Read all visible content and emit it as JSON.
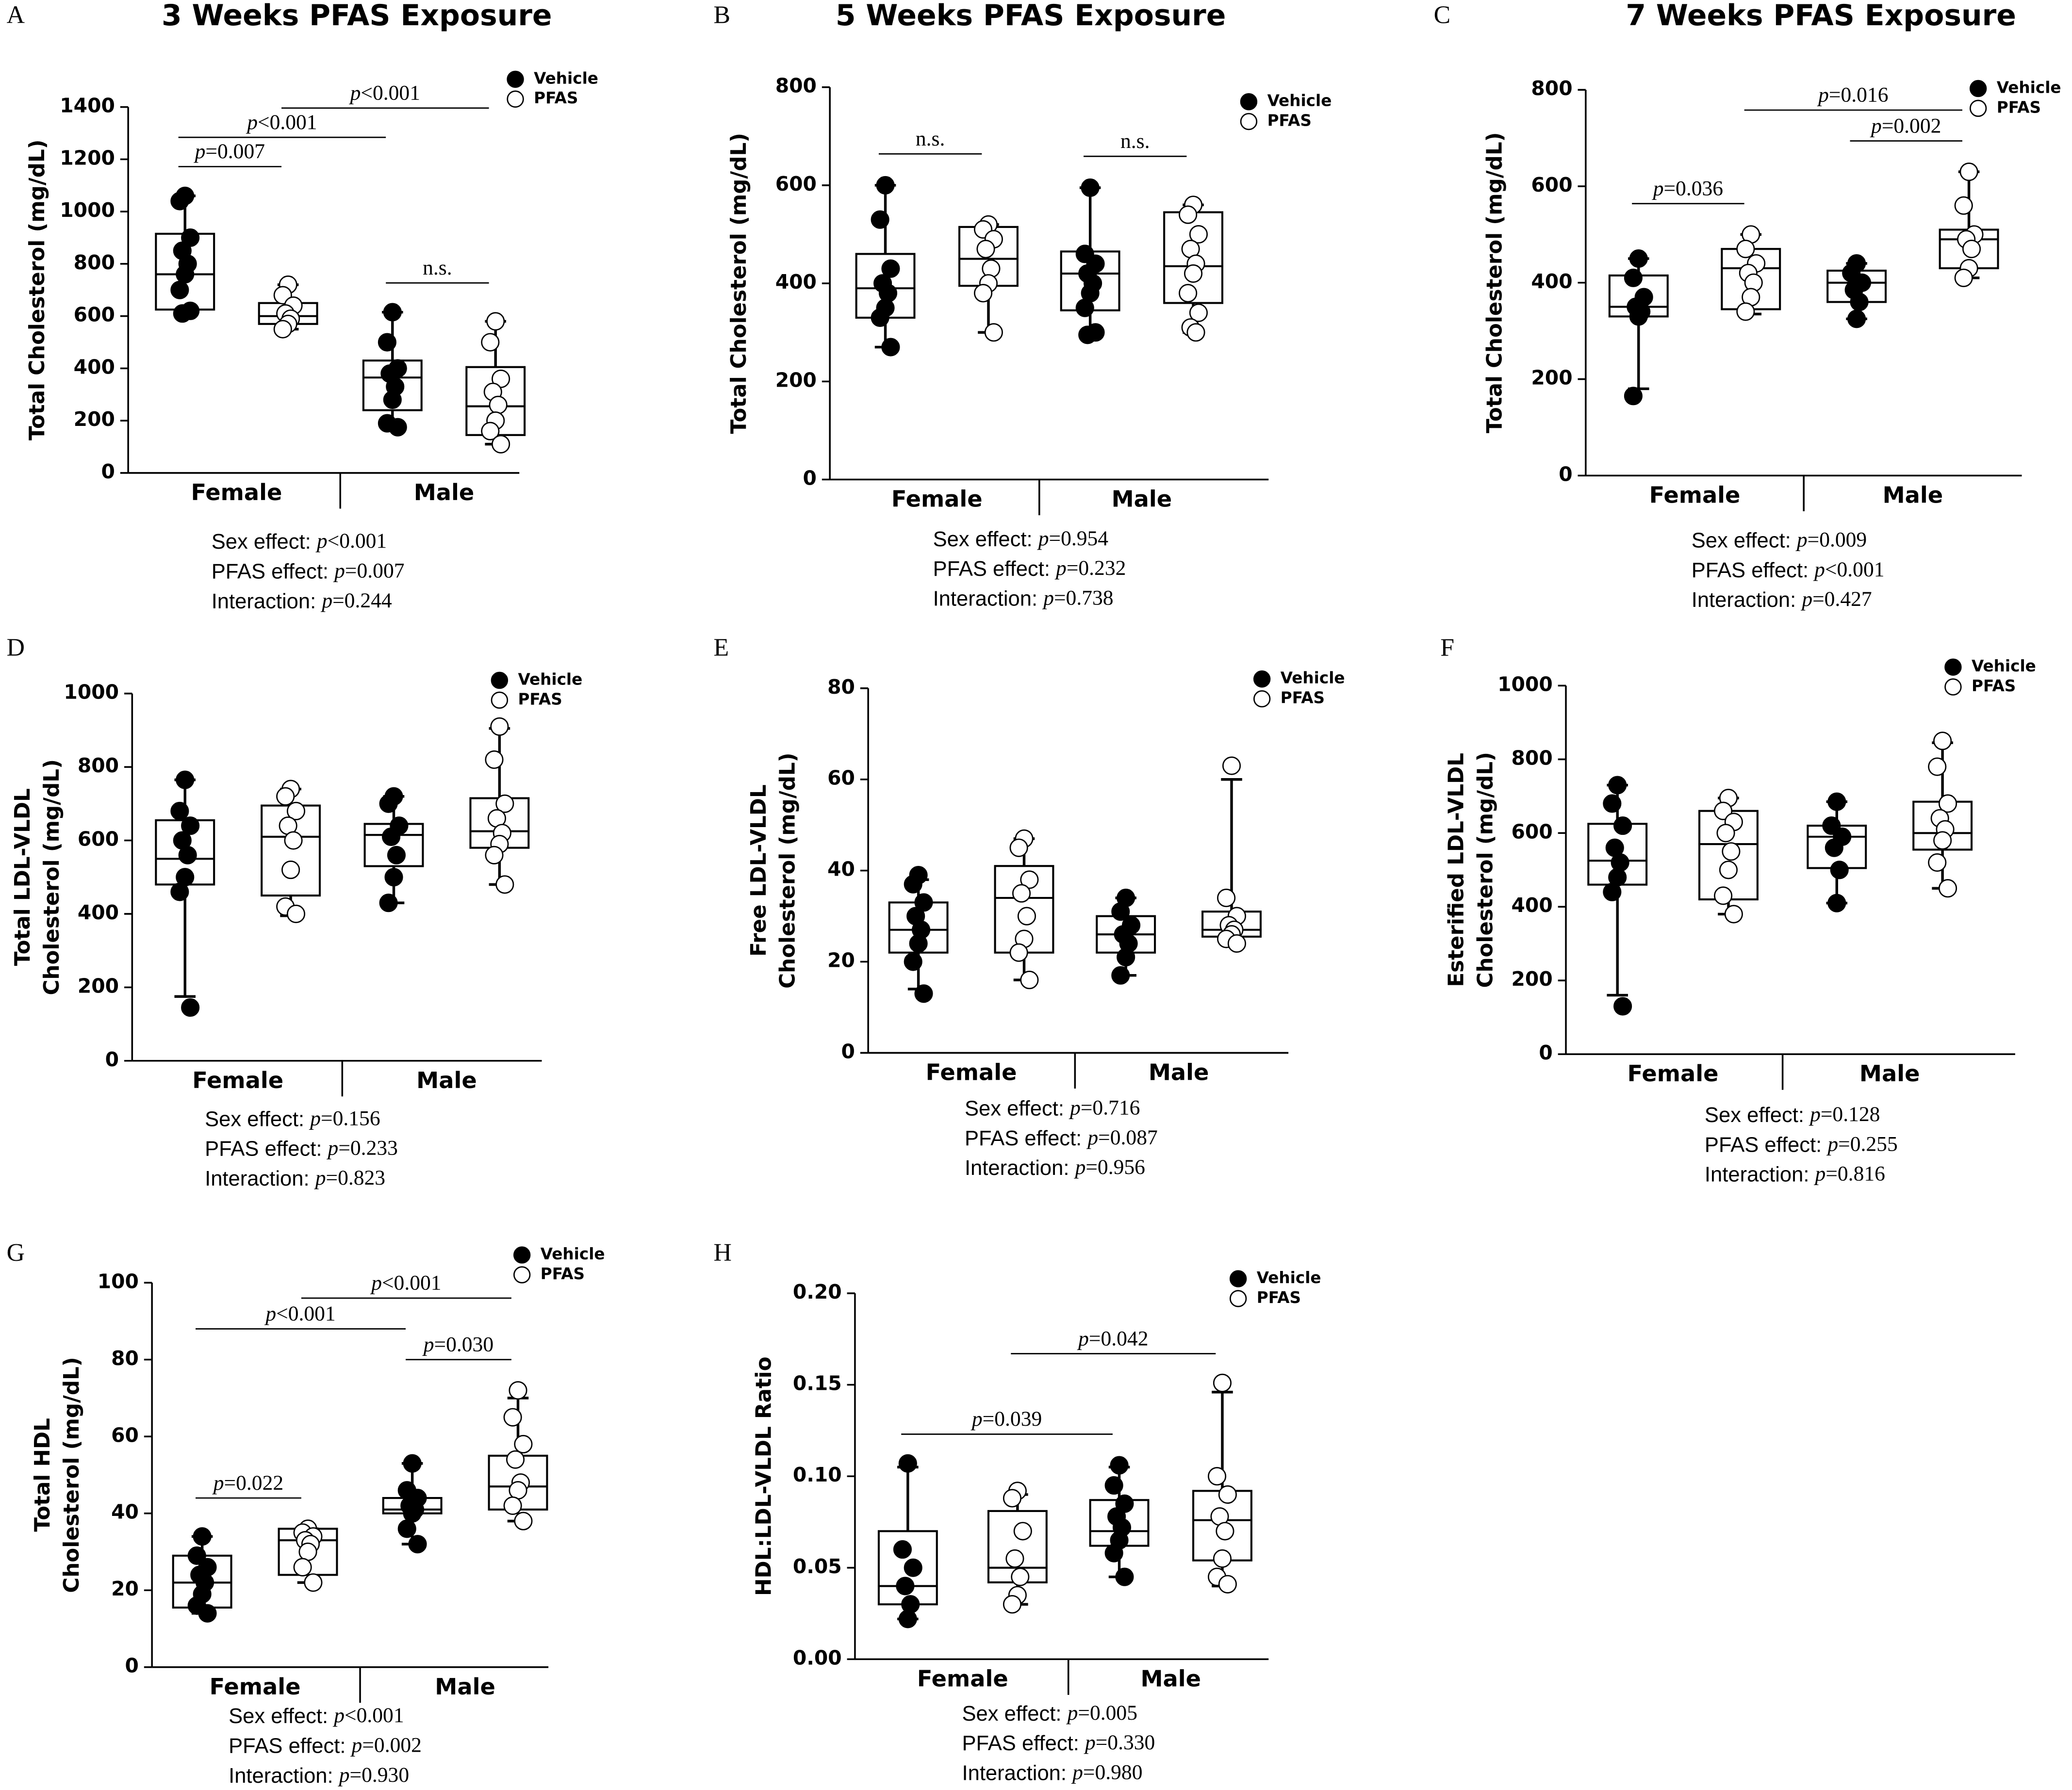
{
  "chart_data": [
    {
      "type": "box",
      "panel_label": "A",
      "title": "3 Weeks PFAS Exposure",
      "ylabel": [
        "Total Cholesterol (mg/dL)"
      ],
      "categories": [
        "Female",
        "Male"
      ],
      "ylim": [
        0,
        1400
      ],
      "yticks": [
        0,
        200,
        400,
        600,
        800,
        1000,
        1200,
        1400
      ],
      "series": [
        {
          "name": "Vehicle",
          "color": "#000000",
          "boxes": [
            {
              "min": 610,
              "q1": 625,
              "median": 760,
              "q3": 915,
              "max": 1060,
              "points": [
                1060,
                1040,
                900,
                850,
                800,
                760,
                700,
                620,
                610
              ]
            },
            {
              "min": 180,
              "q1": 240,
              "median": 365,
              "q3": 430,
              "max": 615,
              "points": [
                615,
                500,
                400,
                380,
                330,
                280,
                190,
                175
              ]
            }
          ]
        },
        {
          "name": "PFAS",
          "color": "#ffffff",
          "boxes": [
            {
              "min": 550,
              "q1": 570,
              "median": 600,
              "q3": 650,
              "max": 720,
              "points": [
                720,
                680,
                640,
                610,
                590,
                570,
                550
              ]
            },
            {
              "min": 110,
              "q1": 145,
              "median": 255,
              "q3": 405,
              "max": 580,
              "points": [
                580,
                500,
                360,
                310,
                260,
                200,
                160,
                110
              ]
            }
          ]
        }
      ],
      "comparisons": [
        {
          "label": "p=0.007",
          "pair": [
            0,
            1
          ]
        },
        {
          "label": "n.s.",
          "pair": [
            2,
            3
          ]
        },
        {
          "label": "p<0.001",
          "pair": [
            0,
            2
          ]
        },
        {
          "label": "p<0.001",
          "pair": [
            1,
            3
          ]
        }
      ],
      "stats": [
        "Sex effect: p<0.001",
        "PFAS effect: p=0.007",
        "Interaction: p=0.244"
      ]
    },
    {
      "type": "box",
      "panel_label": "B",
      "title": "5 Weeks PFAS Exposure",
      "ylabel": [
        "Total Cholesterol (mg/dL)"
      ],
      "categories": [
        "Female",
        "Male"
      ],
      "ylim": [
        0,
        800
      ],
      "yticks": [
        0,
        200,
        400,
        600,
        800
      ],
      "series": [
        {
          "name": "Vehicle",
          "color": "#000000",
          "boxes": [
            {
              "min": 270,
              "q1": 330,
              "median": 390,
              "q3": 460,
              "max": 600,
              "points": [
                600,
                530,
                430,
                400,
                380,
                350,
                330,
                270
              ]
            },
            {
              "min": 295,
              "q1": 345,
              "median": 420,
              "q3": 465,
              "max": 595,
              "points": [
                595,
                460,
                440,
                420,
                400,
                380,
                350,
                300,
                295
              ]
            }
          ]
        },
        {
          "name": "PFAS",
          "color": "#ffffff",
          "boxes": [
            {
              "min": 300,
              "q1": 395,
              "median": 450,
              "q3": 515,
              "max": 520,
              "points": [
                520,
                510,
                490,
                470,
                430,
                400,
                380,
                300
              ]
            },
            {
              "min": 300,
              "q1": 360,
              "median": 435,
              "q3": 545,
              "max": 560,
              "points": [
                560,
                540,
                500,
                470,
                440,
                420,
                380,
                340,
                310,
                300
              ]
            }
          ]
        }
      ],
      "comparisons": [
        {
          "label": "n.s.",
          "pair": [
            0,
            1
          ]
        },
        {
          "label": "n.s.",
          "pair": [
            2,
            3
          ]
        }
      ],
      "stats": [
        "Sex effect: p=0.954",
        "PFAS effect: p=0.232",
        "Interaction: p=0.738"
      ]
    },
    {
      "type": "box",
      "panel_label": "C",
      "title": "7 Weeks PFAS Exposure",
      "ylabel": [
        "Total Cholesterol (mg/dL)"
      ],
      "categories": [
        "Female",
        "Male"
      ],
      "ylim": [
        0,
        800
      ],
      "yticks": [
        0,
        200,
        400,
        600,
        800
      ],
      "series": [
        {
          "name": "Vehicle",
          "color": "#000000",
          "boxes": [
            {
              "min": 180,
              "q1": 330,
              "median": 350,
              "q3": 415,
              "max": 450,
              "points": [
                450,
                410,
                370,
                350,
                340,
                330,
                165
              ]
            },
            {
              "min": 325,
              "q1": 360,
              "median": 400,
              "q3": 425,
              "max": 440,
              "points": [
                440,
                420,
                400,
                385,
                360,
                325
              ]
            }
          ]
        },
        {
          "name": "PFAS",
          "color": "#ffffff",
          "boxes": [
            {
              "min": 335,
              "q1": 345,
              "median": 430,
              "q3": 470,
              "max": 500,
              "points": [
                500,
                470,
                440,
                420,
                400,
                370,
                340
              ]
            },
            {
              "min": 410,
              "q1": 430,
              "median": 490,
              "q3": 510,
              "max": 630,
              "points": [
                630,
                560,
                500,
                490,
                470,
                430,
                410
              ]
            }
          ]
        }
      ],
      "comparisons": [
        {
          "label": "p=0.036",
          "pair": [
            0,
            1
          ]
        },
        {
          "label": "p=0.002",
          "pair": [
            2,
            3
          ]
        },
        {
          "label": "p=0.016",
          "pair": [
            1,
            3
          ]
        }
      ],
      "stats": [
        "Sex effect: p=0.009",
        "PFAS effect: p<0.001",
        "Interaction: p=0.427"
      ]
    },
    {
      "type": "box",
      "panel_label": "D",
      "ylabel": [
        "Total LDL-VLDL",
        "Cholesterol (mg/dL)"
      ],
      "categories": [
        "Female",
        "Male"
      ],
      "ylim": [
        0,
        1000
      ],
      "yticks": [
        0,
        200,
        400,
        600,
        800,
        1000
      ],
      "series": [
        {
          "name": "Vehicle",
          "color": "#000000",
          "boxes": [
            {
              "min": 175,
              "q1": 480,
              "median": 550,
              "q3": 655,
              "max": 765,
              "points": [
                765,
                680,
                640,
                600,
                560,
                500,
                460,
                145
              ]
            },
            {
              "min": 430,
              "q1": 530,
              "median": 615,
              "q3": 645,
              "max": 720,
              "points": [
                720,
                700,
                640,
                610,
                560,
                500,
                430
              ]
            }
          ]
        },
        {
          "name": "PFAS",
          "color": "#ffffff",
          "boxes": [
            {
              "min": 395,
              "q1": 450,
              "median": 610,
              "q3": 695,
              "max": 740,
              "points": [
                740,
                720,
                680,
                640,
                600,
                520,
                420,
                400
              ]
            },
            {
              "min": 480,
              "q1": 580,
              "median": 625,
              "q3": 715,
              "max": 905,
              "points": [
                910,
                820,
                700,
                660,
                620,
                590,
                560,
                480
              ]
            }
          ]
        }
      ],
      "comparisons": [],
      "stats": [
        "Sex effect: p=0.156",
        "PFAS effect: p=0.233",
        "Interaction: p=0.823"
      ]
    },
    {
      "type": "box",
      "panel_label": "E",
      "ylabel": [
        "Free LDL-VLDL",
        "Cholesterol (mg/dL)"
      ],
      "categories": [
        "Female",
        "Male"
      ],
      "ylim": [
        0,
        80
      ],
      "yticks": [
        0,
        20,
        40,
        60,
        80
      ],
      "series": [
        {
          "name": "Vehicle",
          "color": "#000000",
          "boxes": [
            {
              "min": 14,
              "q1": 22,
              "median": 27,
              "q3": 33,
              "max": 38,
              "points": [
                39,
                37,
                33,
                30,
                27,
                24,
                20,
                13
              ]
            },
            {
              "min": 17,
              "q1": 22,
              "median": 26,
              "q3": 30,
              "max": 34,
              "points": [
                34,
                31,
                28,
                26,
                24,
                21,
                17
              ]
            }
          ]
        },
        {
          "name": "PFAS",
          "color": "#ffffff",
          "boxes": [
            {
              "min": 16,
              "q1": 22,
              "median": 34,
              "q3": 41,
              "max": 47,
              "points": [
                47,
                45,
                38,
                35,
                30,
                25,
                22,
                16
              ]
            },
            {
              "min": 24,
              "q1": 25.5,
              "median": 27,
              "q3": 31,
              "max": 60,
              "points": [
                63,
                34,
                30,
                28,
                27,
                26,
                25,
                24
              ]
            }
          ]
        }
      ],
      "comparisons": [],
      "stats": [
        "Sex effect: p=0.716",
        "PFAS effect: p=0.087",
        "Interaction: p=0.956"
      ]
    },
    {
      "type": "box",
      "panel_label": "F",
      "ylabel": [
        "Esterified LDL-VLDL",
        "Cholesterol (mg/dL)"
      ],
      "categories": [
        "Female",
        "Male"
      ],
      "ylim": [
        0,
        1000
      ],
      "yticks": [
        0,
        200,
        400,
        600,
        800,
        1000
      ],
      "series": [
        {
          "name": "Vehicle",
          "color": "#000000",
          "boxes": [
            {
              "min": 160,
              "q1": 460,
              "median": 525,
              "q3": 625,
              "max": 730,
              "points": [
                730,
                680,
                620,
                560,
                520,
                480,
                440,
                130
              ]
            },
            {
              "min": 410,
              "q1": 505,
              "median": 590,
              "q3": 620,
              "max": 685,
              "points": [
                685,
                620,
                590,
                560,
                500,
                410
              ]
            }
          ]
        },
        {
          "name": "PFAS",
          "color": "#ffffff",
          "boxes": [
            {
              "min": 380,
              "q1": 420,
              "median": 570,
              "q3": 660,
              "max": 695,
              "points": [
                695,
                660,
                630,
                600,
                550,
                500,
                430,
                380
              ]
            },
            {
              "min": 450,
              "q1": 555,
              "median": 600,
              "q3": 685,
              "max": 845,
              "points": [
                850,
                780,
                680,
                640,
                610,
                580,
                520,
                450
              ]
            }
          ]
        }
      ],
      "comparisons": [],
      "stats": [
        "Sex effect: p=0.128",
        "PFAS effect: p=0.255",
        "Interaction: p=0.816"
      ]
    },
    {
      "type": "box",
      "panel_label": "G",
      "ylabel": [
        "Total HDL",
        "Cholesterol (mg/dL)"
      ],
      "categories": [
        "Female",
        "Male"
      ],
      "ylim": [
        0,
        100
      ],
      "yticks": [
        0,
        20,
        40,
        60,
        80,
        100
      ],
      "series": [
        {
          "name": "Vehicle",
          "color": "#000000",
          "boxes": [
            {
              "min": 14,
              "q1": 15.5,
              "median": 22,
              "q3": 29,
              "max": 34,
              "points": [
                34,
                29,
                26,
                24,
                22,
                19,
                16,
                14
              ]
            },
            {
              "min": 32,
              "q1": 40,
              "median": 41,
              "q3": 44,
              "max": 53,
              "points": [
                53,
                46,
                44,
                42,
                41,
                40,
                36,
                32
              ]
            }
          ]
        },
        {
          "name": "PFAS",
          "color": "#ffffff",
          "boxes": [
            {
              "min": 22,
              "q1": 24,
              "median": 33,
              "q3": 36,
              "max": 36,
              "points": [
                36,
                35,
                34,
                33,
                32,
                30,
                26,
                22
              ]
            },
            {
              "min": 38,
              "q1": 41,
              "median": 47,
              "q3": 55,
              "max": 70,
              "points": [
                72,
                65,
                58,
                54,
                48,
                46,
                42,
                38
              ]
            }
          ]
        }
      ],
      "comparisons": [
        {
          "label": "p=0.022",
          "pair": [
            0,
            1
          ]
        },
        {
          "label": "p=0.030",
          "pair": [
            2,
            3
          ]
        },
        {
          "label": "p<0.001",
          "pair": [
            0,
            2
          ]
        },
        {
          "label": "p<0.001",
          "pair": [
            1,
            3
          ]
        }
      ],
      "stats": [
        "Sex effect: p<0.001",
        "PFAS effect: p=0.002",
        "Interaction: p=0.930"
      ]
    },
    {
      "type": "box",
      "panel_label": "H",
      "ylabel": [
        "HDL:LDL-VLDL Ratio"
      ],
      "categories": [
        "Female",
        "Male"
      ],
      "ylim": [
        0,
        0.2
      ],
      "yticks": [
        {
          "value": 0,
          "label": "0.00"
        },
        {
          "value": 0.05,
          "label": "0.05"
        },
        {
          "value": 0.1,
          "label": "0.10"
        },
        {
          "value": 0.15,
          "label": "0.15"
        },
        {
          "value": 0.2,
          "label": "0.20"
        }
      ],
      "series": [
        {
          "name": "Vehicle",
          "color": "#000000",
          "boxes": [
            {
              "min": 0.022,
              "q1": 0.03,
              "median": 0.04,
              "q3": 0.07,
              "max": 0.105,
              "points": [
                0.107,
                0.06,
                0.05,
                0.04,
                0.03,
                0.022
              ]
            },
            {
              "min": 0.045,
              "q1": 0.062,
              "median": 0.07,
              "q3": 0.087,
              "max": 0.105,
              "points": [
                0.106,
                0.095,
                0.085,
                0.078,
                0.072,
                0.065,
                0.058,
                0.045
              ]
            }
          ]
        },
        {
          "name": "PFAS",
          "color": "#ffffff",
          "boxes": [
            {
              "min": 0.03,
              "q1": 0.042,
              "median": 0.05,
              "q3": 0.081,
              "max": 0.09,
              "points": [
                0.092,
                0.088,
                0.07,
                0.055,
                0.045,
                0.035,
                0.03
              ]
            },
            {
              "min": 0.04,
              "q1": 0.054,
              "median": 0.076,
              "q3": 0.092,
              "max": 0.146,
              "points": [
                0.151,
                0.1,
                0.09,
                0.078,
                0.07,
                0.055,
                0.045,
                0.041
              ]
            }
          ]
        }
      ],
      "comparisons": [
        {
          "label": "p=0.039",
          "pair": [
            0,
            2
          ]
        },
        {
          "label": "p=0.042",
          "pair": [
            1,
            3
          ]
        }
      ],
      "stats": [
        "Sex effect: p=0.005",
        "PFAS effect: p=0.330",
        "Interaction: p=0.980"
      ]
    }
  ]
}
